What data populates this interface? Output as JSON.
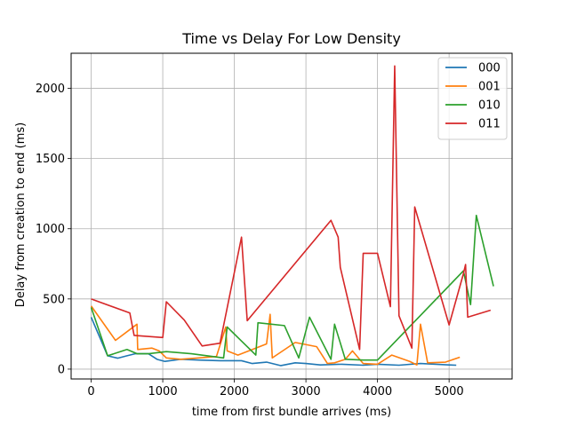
{
  "chart_data": {
    "type": "line",
    "title": "Time vs Delay For Low Density",
    "xlabel": "time from first bundle arrives (ms)",
    "ylabel": "Delay from creation to end (ms)",
    "xlim": [
      -280,
      5880
    ],
    "ylim": [
      -70,
      2250
    ],
    "xticks": [
      0,
      1000,
      2000,
      3000,
      4000,
      5000
    ],
    "yticks": [
      0,
      500,
      1000,
      1500,
      2000
    ],
    "grid": true,
    "legend": "top-right",
    "series": [
      {
        "name": "000",
        "color": "#1f77b4",
        "points": [
          [
            0,
            370
          ],
          [
            230,
            95
          ],
          [
            370,
            78
          ],
          [
            500,
            95
          ],
          [
            620,
            110
          ],
          [
            800,
            110
          ],
          [
            920,
            70
          ],
          [
            1030,
            55
          ],
          [
            1250,
            70
          ],
          [
            1500,
            65
          ],
          [
            1800,
            60
          ],
          [
            2100,
            60
          ],
          [
            2250,
            40
          ],
          [
            2450,
            50
          ],
          [
            2650,
            25
          ],
          [
            2850,
            45
          ],
          [
            3000,
            40
          ],
          [
            3200,
            30
          ],
          [
            3500,
            35
          ],
          [
            3800,
            28
          ],
          [
            4000,
            35
          ],
          [
            4300,
            28
          ],
          [
            4600,
            40
          ],
          [
            5000,
            30
          ],
          [
            5100,
            28
          ]
        ]
      },
      {
        "name": "001",
        "color": "#ff7f0e",
        "points": [
          [
            0,
            450
          ],
          [
            340,
            205
          ],
          [
            640,
            320
          ],
          [
            650,
            140
          ],
          [
            850,
            150
          ],
          [
            950,
            130
          ],
          [
            1050,
            80
          ],
          [
            1250,
            70
          ],
          [
            1500,
            80
          ],
          [
            1750,
            90
          ],
          [
            1880,
            300
          ],
          [
            1900,
            130
          ],
          [
            2050,
            100
          ],
          [
            2300,
            150
          ],
          [
            2450,
            180
          ],
          [
            2500,
            390
          ],
          [
            2530,
            80
          ],
          [
            2850,
            190
          ],
          [
            3150,
            160
          ],
          [
            3200,
            120
          ],
          [
            3300,
            40
          ],
          [
            3400,
            45
          ],
          [
            3550,
            70
          ],
          [
            3650,
            130
          ],
          [
            3800,
            40
          ],
          [
            4000,
            35
          ],
          [
            4200,
            100
          ],
          [
            4450,
            55
          ],
          [
            4550,
            30
          ],
          [
            4600,
            320
          ],
          [
            4700,
            45
          ],
          [
            4950,
            50
          ],
          [
            5150,
            85
          ]
        ]
      },
      {
        "name": "010",
        "color": "#2ca02c",
        "points": [
          [
            0,
            440
          ],
          [
            230,
            95
          ],
          [
            500,
            140
          ],
          [
            640,
            110
          ],
          [
            800,
            110
          ],
          [
            1050,
            125
          ],
          [
            1400,
            110
          ],
          [
            1850,
            80
          ],
          [
            1900,
            300
          ],
          [
            2000,
            250
          ],
          [
            2300,
            100
          ],
          [
            2330,
            330
          ],
          [
            2700,
            310
          ],
          [
            2900,
            80
          ],
          [
            3050,
            370
          ],
          [
            3350,
            70
          ],
          [
            3400,
            320
          ],
          [
            3550,
            70
          ],
          [
            3800,
            65
          ],
          [
            4000,
            65
          ],
          [
            5200,
            700
          ],
          [
            5300,
            460
          ],
          [
            5380,
            1095
          ],
          [
            5620,
            590
          ]
        ]
      },
      {
        "name": "011",
        "color": "#d62728",
        "points": [
          [
            0,
            500
          ],
          [
            540,
            400
          ],
          [
            600,
            240
          ],
          [
            1000,
            225
          ],
          [
            1050,
            480
          ],
          [
            1300,
            350
          ],
          [
            1550,
            165
          ],
          [
            1800,
            185
          ],
          [
            2100,
            940
          ],
          [
            2180,
            345
          ],
          [
            3350,
            1060
          ],
          [
            3450,
            940
          ],
          [
            3480,
            725
          ],
          [
            3750,
            140
          ],
          [
            3800,
            825
          ],
          [
            4000,
            825
          ],
          [
            4180,
            445
          ],
          [
            4240,
            2160
          ],
          [
            4300,
            380
          ],
          [
            4480,
            150
          ],
          [
            4520,
            1155
          ],
          [
            5000,
            315
          ],
          [
            5200,
            680
          ],
          [
            5230,
            745
          ],
          [
            5260,
            370
          ],
          [
            5580,
            420
          ]
        ]
      }
    ]
  }
}
